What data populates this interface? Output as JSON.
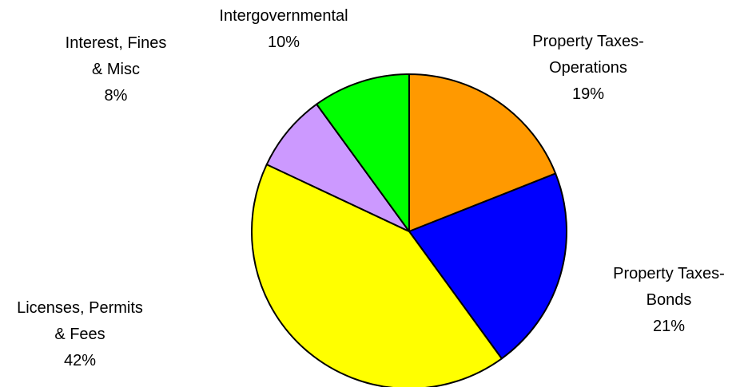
{
  "chart_data": {
    "type": "pie",
    "start": "12 o'clock",
    "direction": "clockwise",
    "slices": [
      {
        "label_lines": [
          "Property Taxes-",
          "Operations"
        ],
        "percent_label": "19%",
        "value": 19,
        "color": "#FF9900"
      },
      {
        "label_lines": [
          "Property Taxes-",
          "Bonds"
        ],
        "percent_label": "21%",
        "value": 21,
        "color": "#0000FF"
      },
      {
        "label_lines": [
          "Licenses, Permits",
          "& Fees"
        ],
        "percent_label": "42%",
        "value": 42,
        "color": "#FFFF00"
      },
      {
        "label_lines": [
          "Interest, Fines",
          "& Misc"
        ],
        "percent_label": "8%",
        "value": 8,
        "color": "#CC99FF"
      },
      {
        "label_lines": [
          "Intergovernmental"
        ],
        "percent_label": "10%",
        "value": 10,
        "color": "#00FF00"
      }
    ]
  }
}
